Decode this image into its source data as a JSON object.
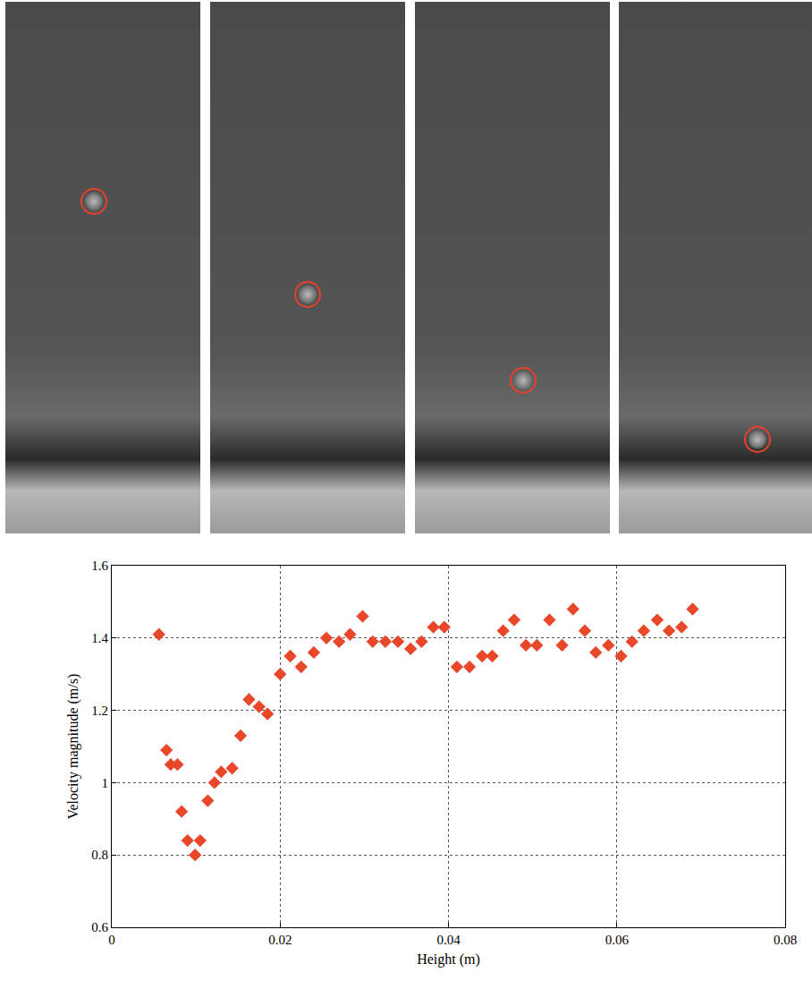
{
  "chart_data": {
    "type": "scatter",
    "x_label": "Height (m)",
    "y_label": "Velocity magnitude (m/s)",
    "x": [
      0.0056,
      0.0065,
      0.007,
      0.0078,
      0.0083,
      0.009,
      0.0099,
      0.0105,
      0.0114,
      0.0122,
      0.013,
      0.0143,
      0.0153,
      0.0163,
      0.0175,
      0.0185,
      0.02,
      0.0212,
      0.0225,
      0.024,
      0.0255,
      0.027,
      0.0283,
      0.0298,
      0.031,
      0.0325,
      0.034,
      0.0355,
      0.0368,
      0.0382,
      0.0395,
      0.041,
      0.0425,
      0.044,
      0.0452,
      0.0465,
      0.0478,
      0.0492,
      0.0505,
      0.052,
      0.0535,
      0.0548,
      0.0562,
      0.0575,
      0.059,
      0.0605,
      0.0618,
      0.0632,
      0.0648,
      0.0662,
      0.0677,
      0.069
    ],
    "values": [
      1.41,
      1.09,
      1.05,
      1.05,
      0.92,
      0.84,
      0.8,
      0.84,
      0.95,
      1.0,
      1.03,
      1.04,
      1.13,
      1.23,
      1.21,
      1.19,
      1.3,
      1.35,
      1.32,
      1.36,
      1.4,
      1.39,
      1.41,
      1.46,
      1.39,
      1.39,
      1.39,
      1.37,
      1.39,
      1.43,
      1.43,
      1.32,
      1.32,
      1.35,
      1.35,
      1.42,
      1.45,
      1.38,
      1.38,
      1.45,
      1.38,
      1.48,
      1.42,
      1.36,
      1.38,
      1.35,
      1.39,
      1.42,
      1.45,
      1.42,
      1.43,
      1.48
    ],
    "color": "#e8472a",
    "marker": "diamond",
    "xlim": [
      0,
      0.08
    ],
    "xticks": [
      0,
      0.02,
      0.04,
      0.06,
      0.08
    ],
    "ylim": [
      0.6,
      1.6
    ],
    "yticks": [
      0.6,
      0.8,
      1,
      1.2,
      1.4,
      1.6
    ],
    "grid": true
  }
}
